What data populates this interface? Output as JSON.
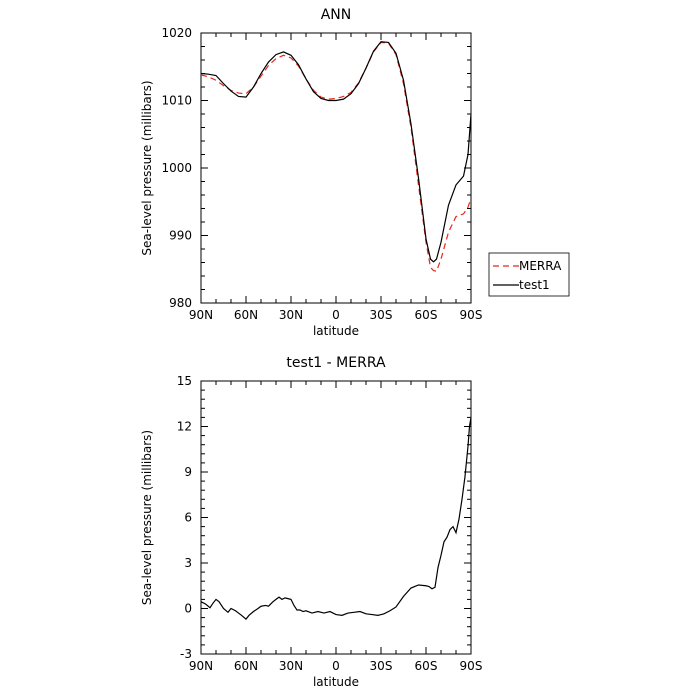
{
  "chart_data": [
    {
      "type": "line",
      "title": "ANN",
      "xlabel": "latitude",
      "ylabel": "Sea-level pressure (millibars)",
      "xlim": [
        90,
        -90
      ],
      "ylim": [
        980,
        1020
      ],
      "x_ticks": [
        90,
        60,
        30,
        0,
        -30,
        -60,
        -90
      ],
      "x_tick_labels": [
        "90N",
        "60N",
        "30N",
        "0",
        "30S",
        "60S",
        "90S"
      ],
      "y_ticks": [
        980,
        990,
        1000,
        1010,
        1020
      ],
      "y_tick_labels": [
        "980",
        "990",
        "1000",
        "1010",
        "1020"
      ],
      "legend_position": "outside-right",
      "series": [
        {
          "name": "MERRA",
          "color": "#e8261b",
          "dash": "dashed",
          "x": [
            90,
            85,
            80,
            75,
            70,
            65,
            60,
            55,
            50,
            45,
            40,
            35,
            30,
            25,
            20,
            15,
            10,
            5,
            0,
            -5,
            -10,
            -15,
            -20,
            -25,
            -30,
            -35,
            -40,
            -45,
            -50,
            -55,
            -60,
            -63,
            -65,
            -67,
            -70,
            -75,
            -80,
            -85,
            -88,
            -90
          ],
          "y": [
            1013.8,
            1013.5,
            1013.0,
            1012.2,
            1011.5,
            1011.1,
            1011.0,
            1012.0,
            1013.6,
            1015.2,
            1016.2,
            1016.7,
            1016.3,
            1015.1,
            1013.2,
            1011.5,
            1010.5,
            1010.2,
            1010.3,
            1010.6,
            1011.2,
            1012.6,
            1014.8,
            1017.2,
            1018.6,
            1018.5,
            1016.8,
            1012.5,
            1006.0,
            997.5,
            989.0,
            985.3,
            984.8,
            984.7,
            986.5,
            990.5,
            992.8,
            993.2,
            994.2,
            995.5
          ]
        },
        {
          "name": "test1",
          "color": "#000000",
          "dash": "solid",
          "x": [
            90,
            85,
            80,
            75,
            70,
            65,
            60,
            55,
            50,
            45,
            40,
            35,
            30,
            25,
            20,
            15,
            10,
            5,
            0,
            -5,
            -10,
            -15,
            -20,
            -25,
            -30,
            -35,
            -40,
            -45,
            -50,
            -55,
            -60,
            -63,
            -65,
            -67,
            -70,
            -75,
            -80,
            -85,
            -88,
            -90
          ],
          "y": [
            1014.0,
            1013.9,
            1013.7,
            1012.5,
            1011.4,
            1010.6,
            1010.5,
            1012.0,
            1014.0,
            1015.7,
            1016.8,
            1017.2,
            1016.7,
            1015.3,
            1013.2,
            1011.3,
            1010.3,
            1010.0,
            1010.0,
            1010.2,
            1011.0,
            1012.5,
            1014.8,
            1017.3,
            1018.7,
            1018.6,
            1017.0,
            1013.0,
            1006.5,
            998.5,
            989.5,
            986.5,
            986.1,
            986.5,
            989.0,
            994.5,
            997.5,
            998.8,
            1002.0,
            1008.0
          ]
        }
      ]
    },
    {
      "type": "line",
      "title": "test1 - MERRA",
      "xlabel": "latitude",
      "ylabel": "Sea-level pressure (millibars)",
      "xlim": [
        90,
        -90
      ],
      "ylim": [
        -3,
        15
      ],
      "x_ticks": [
        90,
        60,
        30,
        0,
        -30,
        -60,
        -90
      ],
      "x_tick_labels": [
        "90N",
        "60N",
        "30N",
        "0",
        "30S",
        "60S",
        "90S"
      ],
      "y_ticks": [
        -3,
        0,
        3,
        6,
        9,
        12,
        15
      ],
      "y_tick_labels": [
        "-3",
        "0",
        "3",
        "6",
        "9",
        "12",
        "15"
      ],
      "series": [
        {
          "color": "#000000",
          "dash": "solid",
          "x": [
            90,
            87,
            84,
            82,
            80,
            78,
            75,
            72,
            70,
            67,
            65,
            63,
            60,
            58,
            55,
            52,
            50,
            47,
            45,
            42,
            40,
            38,
            36,
            34,
            32,
            30,
            28,
            26,
            24,
            22,
            20,
            16,
            12,
            8,
            4,
            0,
            -4,
            -8,
            -12,
            -16,
            -20,
            -24,
            -28,
            -32,
            -36,
            -40,
            -45,
            -50,
            -55,
            -60,
            -62,
            -64,
            -66,
            -68,
            -70,
            -72,
            -74,
            -76,
            -78,
            -80,
            -82,
            -84,
            -86,
            -88,
            -89,
            -90
          ],
          "y": [
            0.45,
            0.3,
            0.05,
            0.35,
            0.6,
            0.45,
            0.0,
            -0.25,
            0.0,
            -0.15,
            -0.3,
            -0.45,
            -0.7,
            -0.45,
            -0.2,
            0.0,
            0.15,
            0.2,
            0.15,
            0.45,
            0.6,
            0.75,
            0.6,
            0.7,
            0.65,
            0.6,
            0.2,
            -0.1,
            -0.1,
            -0.2,
            -0.15,
            -0.3,
            -0.2,
            -0.3,
            -0.2,
            -0.4,
            -0.45,
            -0.3,
            -0.25,
            -0.2,
            -0.35,
            -0.4,
            -0.45,
            -0.35,
            -0.15,
            0.1,
            0.8,
            1.35,
            1.55,
            1.5,
            1.45,
            1.3,
            1.4,
            2.7,
            3.5,
            4.4,
            4.7,
            5.2,
            5.4,
            5.0,
            5.9,
            7.2,
            8.7,
            10.7,
            12.0,
            12.6
          ]
        }
      ]
    }
  ]
}
